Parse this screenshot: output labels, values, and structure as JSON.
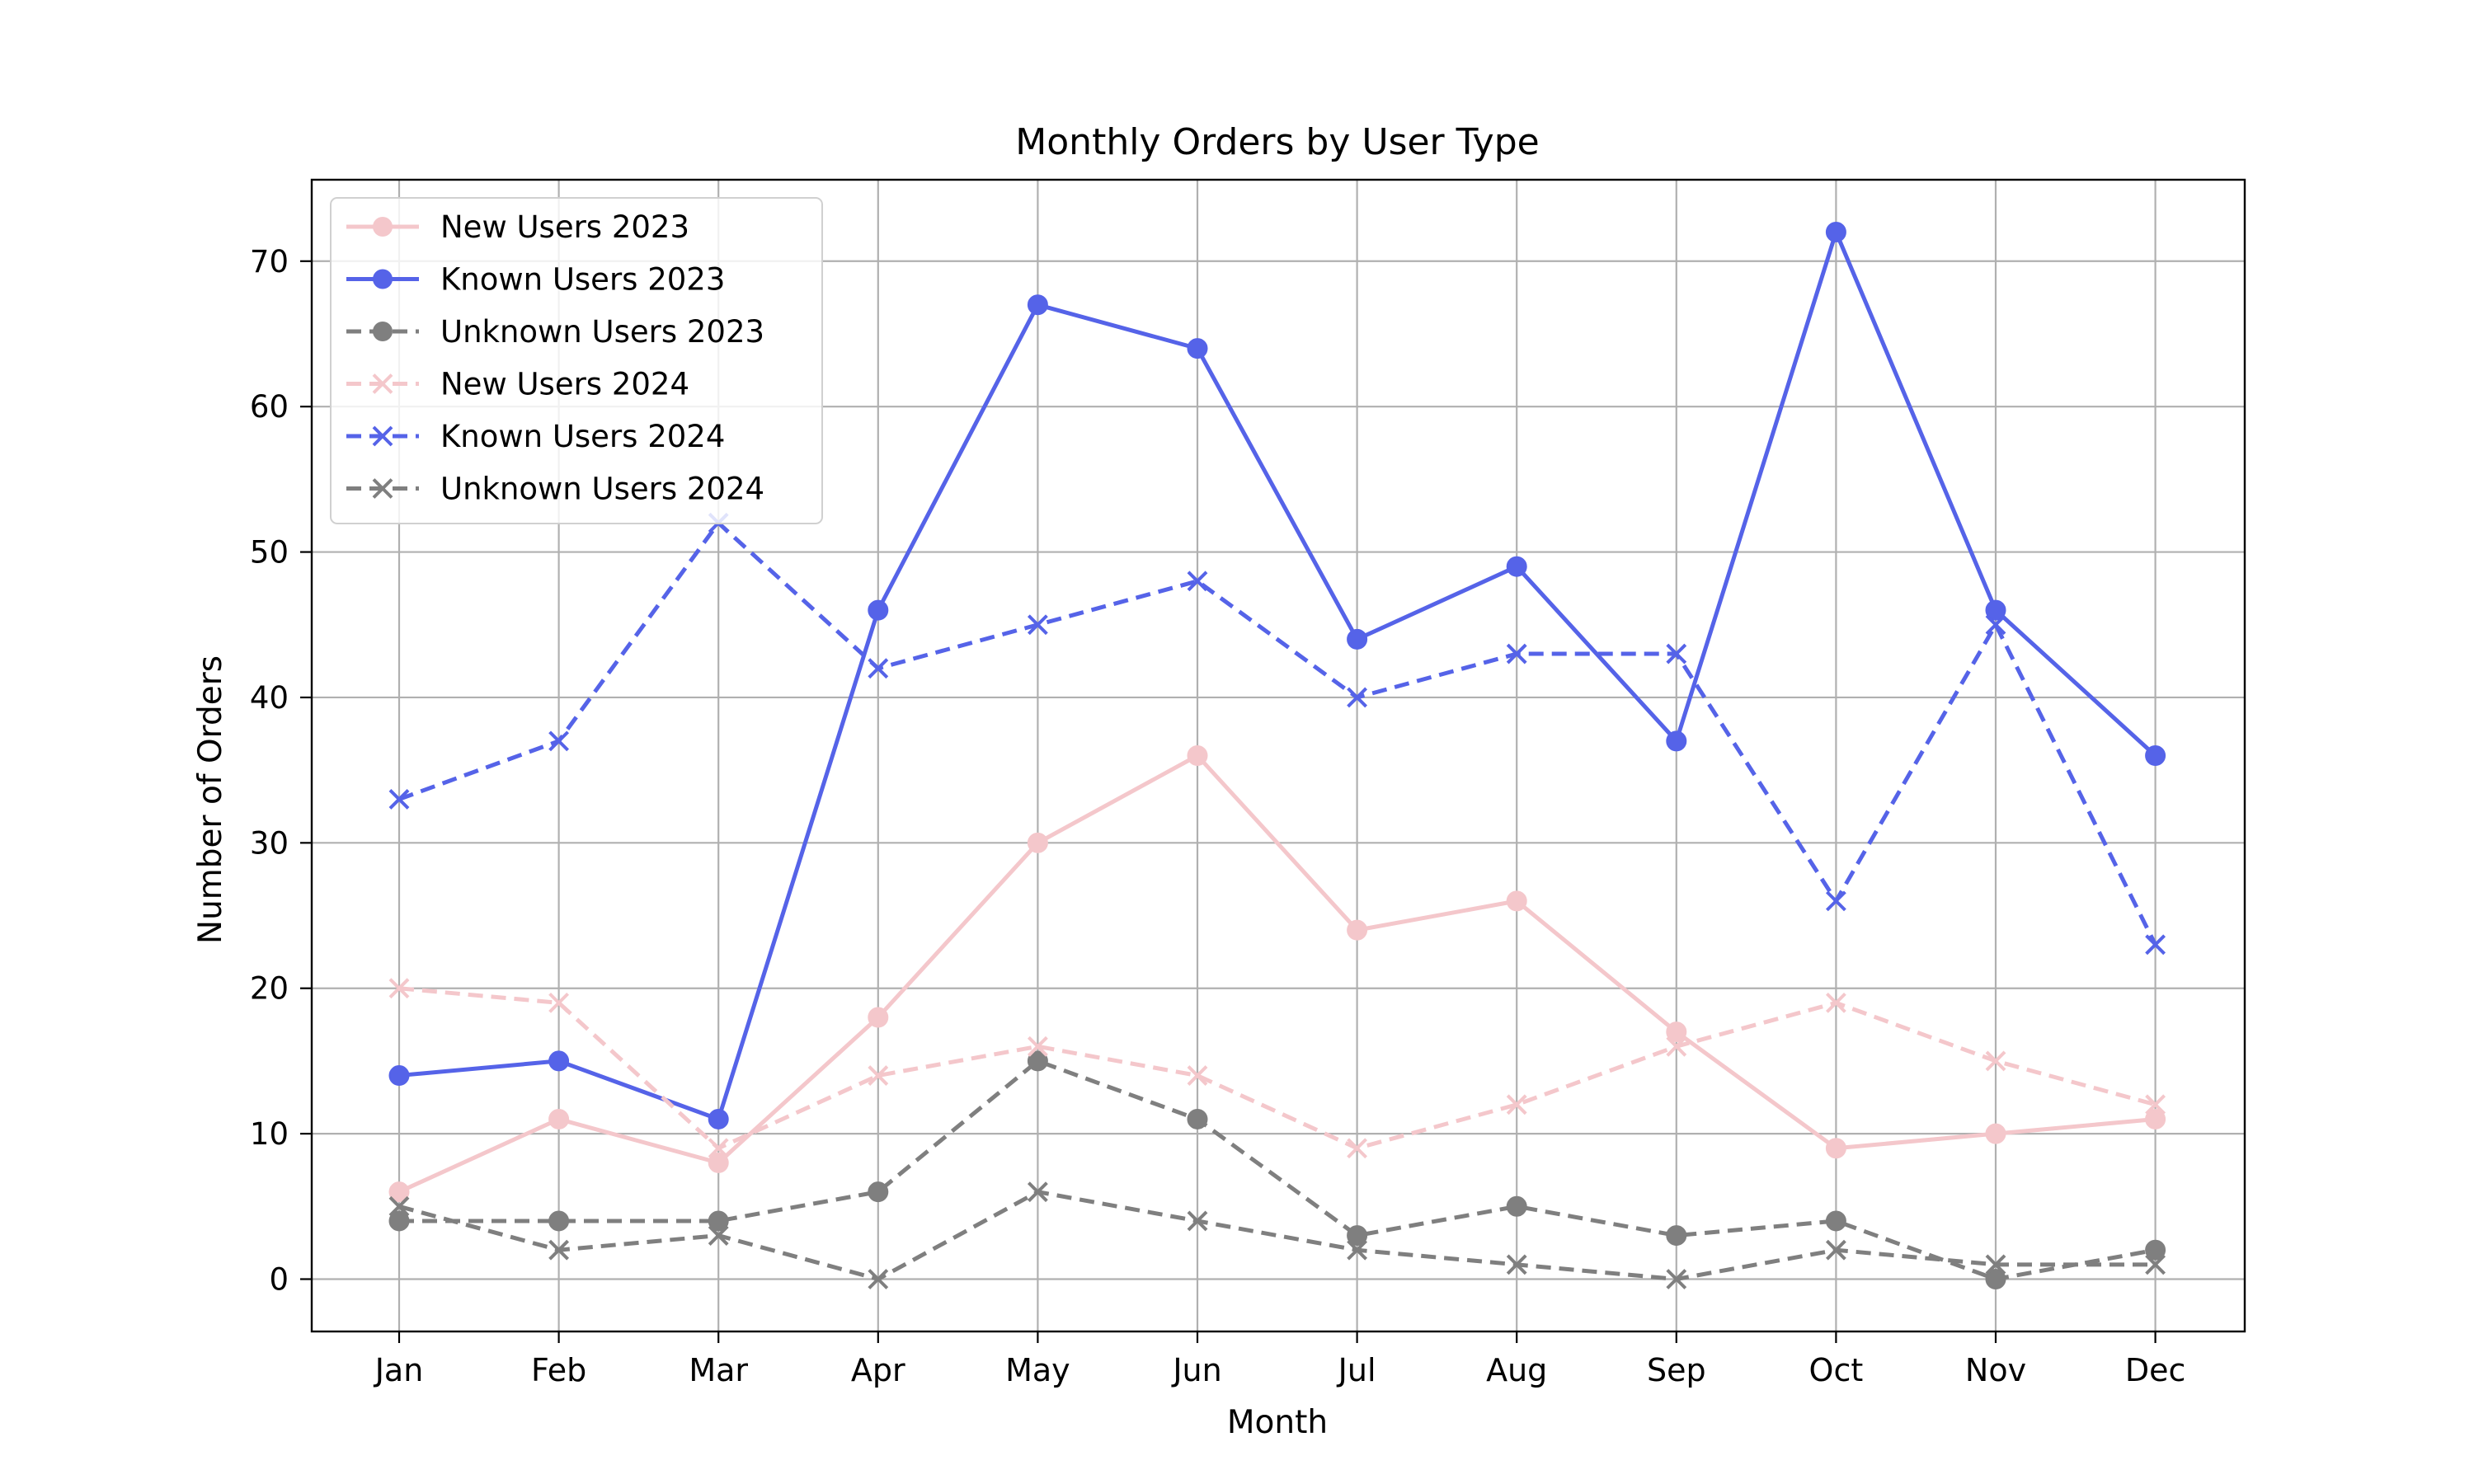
{
  "chart_data": {
    "type": "line",
    "title": "Monthly Orders by User Type",
    "xlabel": "Month",
    "ylabel": "Number of Orders",
    "categories": [
      "Jan",
      "Feb",
      "Mar",
      "Apr",
      "May",
      "Jun",
      "Jul",
      "Aug",
      "Sep",
      "Oct",
      "Nov",
      "Dec"
    ],
    "ylim": [
      -3.6,
      75.6
    ],
    "yticks": [
      0,
      10,
      20,
      30,
      40,
      50,
      60,
      70
    ],
    "grid": true,
    "legend_position": "top-left",
    "series": [
      {
        "name": "New Users 2023",
        "values": [
          6,
          11,
          8,
          18,
          30,
          36,
          24,
          26,
          17,
          9,
          10,
          11
        ],
        "color": "#f4c7cb",
        "dash": "solid",
        "marker": "circle"
      },
      {
        "name": "Known Users 2023",
        "values": [
          14,
          15,
          11,
          46,
          67,
          64,
          44,
          49,
          37,
          72,
          46,
          36
        ],
        "color": "#5563e8",
        "dash": "solid",
        "marker": "circle"
      },
      {
        "name": "Unknown Users 2023",
        "values": [
          4,
          4,
          4,
          6,
          15,
          11,
          3,
          5,
          3,
          4,
          0,
          2
        ],
        "color": "#7f7f7f",
        "dash": "dashed",
        "marker": "circle"
      },
      {
        "name": "New Users 2024",
        "values": [
          20,
          19,
          9,
          14,
          16,
          14,
          9,
          12,
          16,
          19,
          15,
          12
        ],
        "color": "#f4c7cb",
        "dash": "dashed",
        "marker": "x"
      },
      {
        "name": "Known Users 2024",
        "values": [
          33,
          37,
          52,
          42,
          45,
          48,
          40,
          43,
          43,
          26,
          45,
          23
        ],
        "color": "#5563e8",
        "dash": "dashed",
        "marker": "x"
      },
      {
        "name": "Unknown Users 2024",
        "values": [
          5,
          2,
          3,
          0,
          6,
          4,
          2,
          1,
          0,
          2,
          1,
          1
        ],
        "color": "#7f7f7f",
        "dash": "dashed",
        "marker": "x"
      }
    ]
  }
}
